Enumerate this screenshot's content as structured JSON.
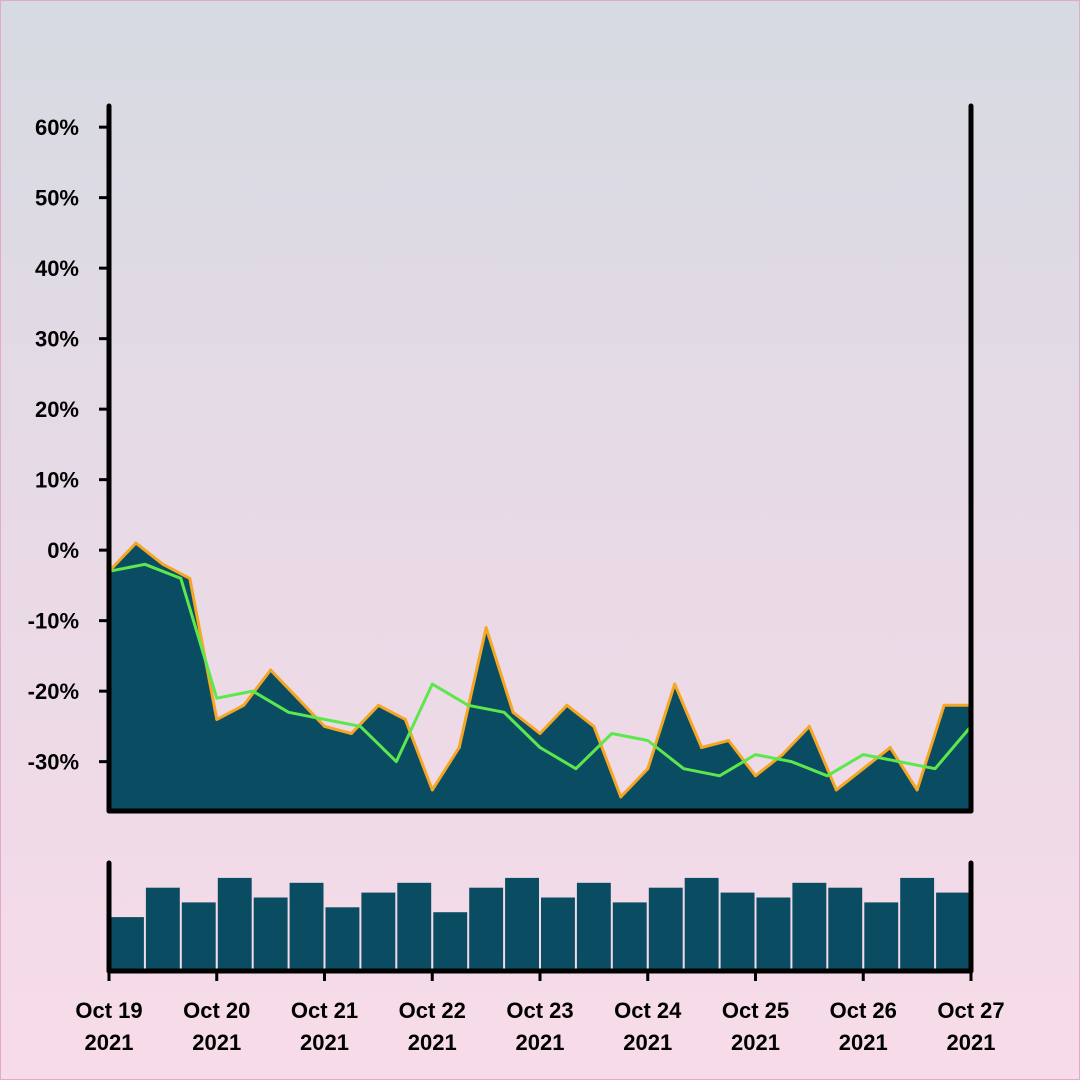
{
  "colors": {
    "area_fill": "#0a4d62",
    "area_edge": "#f5a623",
    "moving_average_line": "#5ce84c",
    "volume_bar": "#0a4d62",
    "axis": "#000000",
    "background_top": "#d6dae2",
    "background_bottom": "#f8dbe9"
  },
  "chart_data": [
    {
      "type": "area",
      "title": "",
      "xlabel": "",
      "ylabel": "",
      "y_tick_labels": [
        "60%",
        "50%",
        "40%",
        "30%",
        "20%",
        "10%",
        "0%",
        "-10%",
        "-20%",
        "-30%"
      ],
      "y_ticks": [
        60,
        50,
        40,
        30,
        20,
        10,
        0,
        -10,
        -20,
        -30
      ],
      "ylim": [
        -37,
        63
      ],
      "xlim": [
        "2021-10-19",
        "2021-10-27"
      ],
      "grid": false,
      "legend": "none",
      "series": [
        {
          "kind": "percent-change area",
          "x": [
            "2021-10-19 00:00",
            "2021-10-19 06:00",
            "2021-10-19 12:00",
            "2021-10-19 18:00",
            "2021-10-20 00:00",
            "2021-10-20 06:00",
            "2021-10-20 12:00",
            "2021-10-20 18:00",
            "2021-10-21 00:00",
            "2021-10-21 06:00",
            "2021-10-21 12:00",
            "2021-10-21 18:00",
            "2021-10-22 00:00",
            "2021-10-22 06:00",
            "2021-10-22 12:00",
            "2021-10-22 18:00",
            "2021-10-23 00:00",
            "2021-10-23 06:00",
            "2021-10-23 12:00",
            "2021-10-23 18:00",
            "2021-10-24 00:00",
            "2021-10-24 06:00",
            "2021-10-24 12:00",
            "2021-10-24 18:00",
            "2021-10-25 00:00",
            "2021-10-25 06:00",
            "2021-10-25 12:00",
            "2021-10-25 18:00",
            "2021-10-26 00:00",
            "2021-10-26 06:00",
            "2021-10-26 12:00",
            "2021-10-26 18:00",
            "2021-10-27 00:00"
          ],
          "values": [
            -3,
            1,
            -2,
            -4,
            -24,
            -22,
            -17,
            -21,
            -25,
            -26,
            -22,
            -24,
            -34,
            -28,
            -11,
            -23,
            -26,
            -22,
            -25,
            -35,
            -31,
            -19,
            -28,
            -27,
            -32,
            -29,
            -25,
            -34,
            -31,
            -28,
            -34,
            -22,
            -22
          ]
        },
        {
          "kind": "moving average line",
          "x": [
            "2021-10-19 00:00",
            "2021-10-19 08:00",
            "2021-10-19 16:00",
            "2021-10-20 00:00",
            "2021-10-20 08:00",
            "2021-10-20 16:00",
            "2021-10-21 00:00",
            "2021-10-21 08:00",
            "2021-10-21 16:00",
            "2021-10-22 00:00",
            "2021-10-22 08:00",
            "2021-10-22 16:00",
            "2021-10-23 00:00",
            "2021-10-23 08:00",
            "2021-10-23 16:00",
            "2021-10-24 00:00",
            "2021-10-24 08:00",
            "2021-10-24 16:00",
            "2021-10-25 00:00",
            "2021-10-25 08:00",
            "2021-10-25 16:00",
            "2021-10-26 00:00",
            "2021-10-26 08:00",
            "2021-10-26 16:00",
            "2021-10-27 00:00"
          ],
          "values": [
            -3,
            -2,
            -4,
            -21,
            -20,
            -23,
            -24,
            -25,
            -30,
            -19,
            -22,
            -23,
            -28,
            -31,
            -26,
            -27,
            -31,
            -32,
            -29,
            -30,
            -32,
            -29,
            -30,
            -31,
            -25
          ]
        }
      ]
    },
    {
      "type": "bar",
      "title": "",
      "xlabel": "",
      "ylabel": "",
      "grid": false,
      "legend": "none",
      "x_tick_labels": [
        {
          "month_day": "Oct 19",
          "year": "2021"
        },
        {
          "month_day": "Oct 20",
          "year": "2021"
        },
        {
          "month_day": "Oct 21",
          "year": "2021"
        },
        {
          "month_day": "Oct 22",
          "year": "2021"
        },
        {
          "month_day": "Oct 23",
          "year": "2021"
        },
        {
          "month_day": "Oct 24",
          "year": "2021"
        },
        {
          "month_day": "Oct 25",
          "year": "2021"
        },
        {
          "month_day": "Oct 26",
          "year": "2021"
        },
        {
          "month_day": "Oct 27",
          "year": "2021"
        }
      ],
      "series": [
        {
          "kind": "volume",
          "values_relative": [
            0.55,
            0.85,
            0.7,
            0.95,
            0.75,
            0.9,
            0.65,
            0.8,
            0.9,
            0.6,
            0.85,
            0.95,
            0.75,
            0.9,
            0.7,
            0.85,
            0.95,
            0.8,
            0.75,
            0.9,
            0.85,
            0.7,
            0.95,
            0.8
          ]
        }
      ]
    }
  ]
}
